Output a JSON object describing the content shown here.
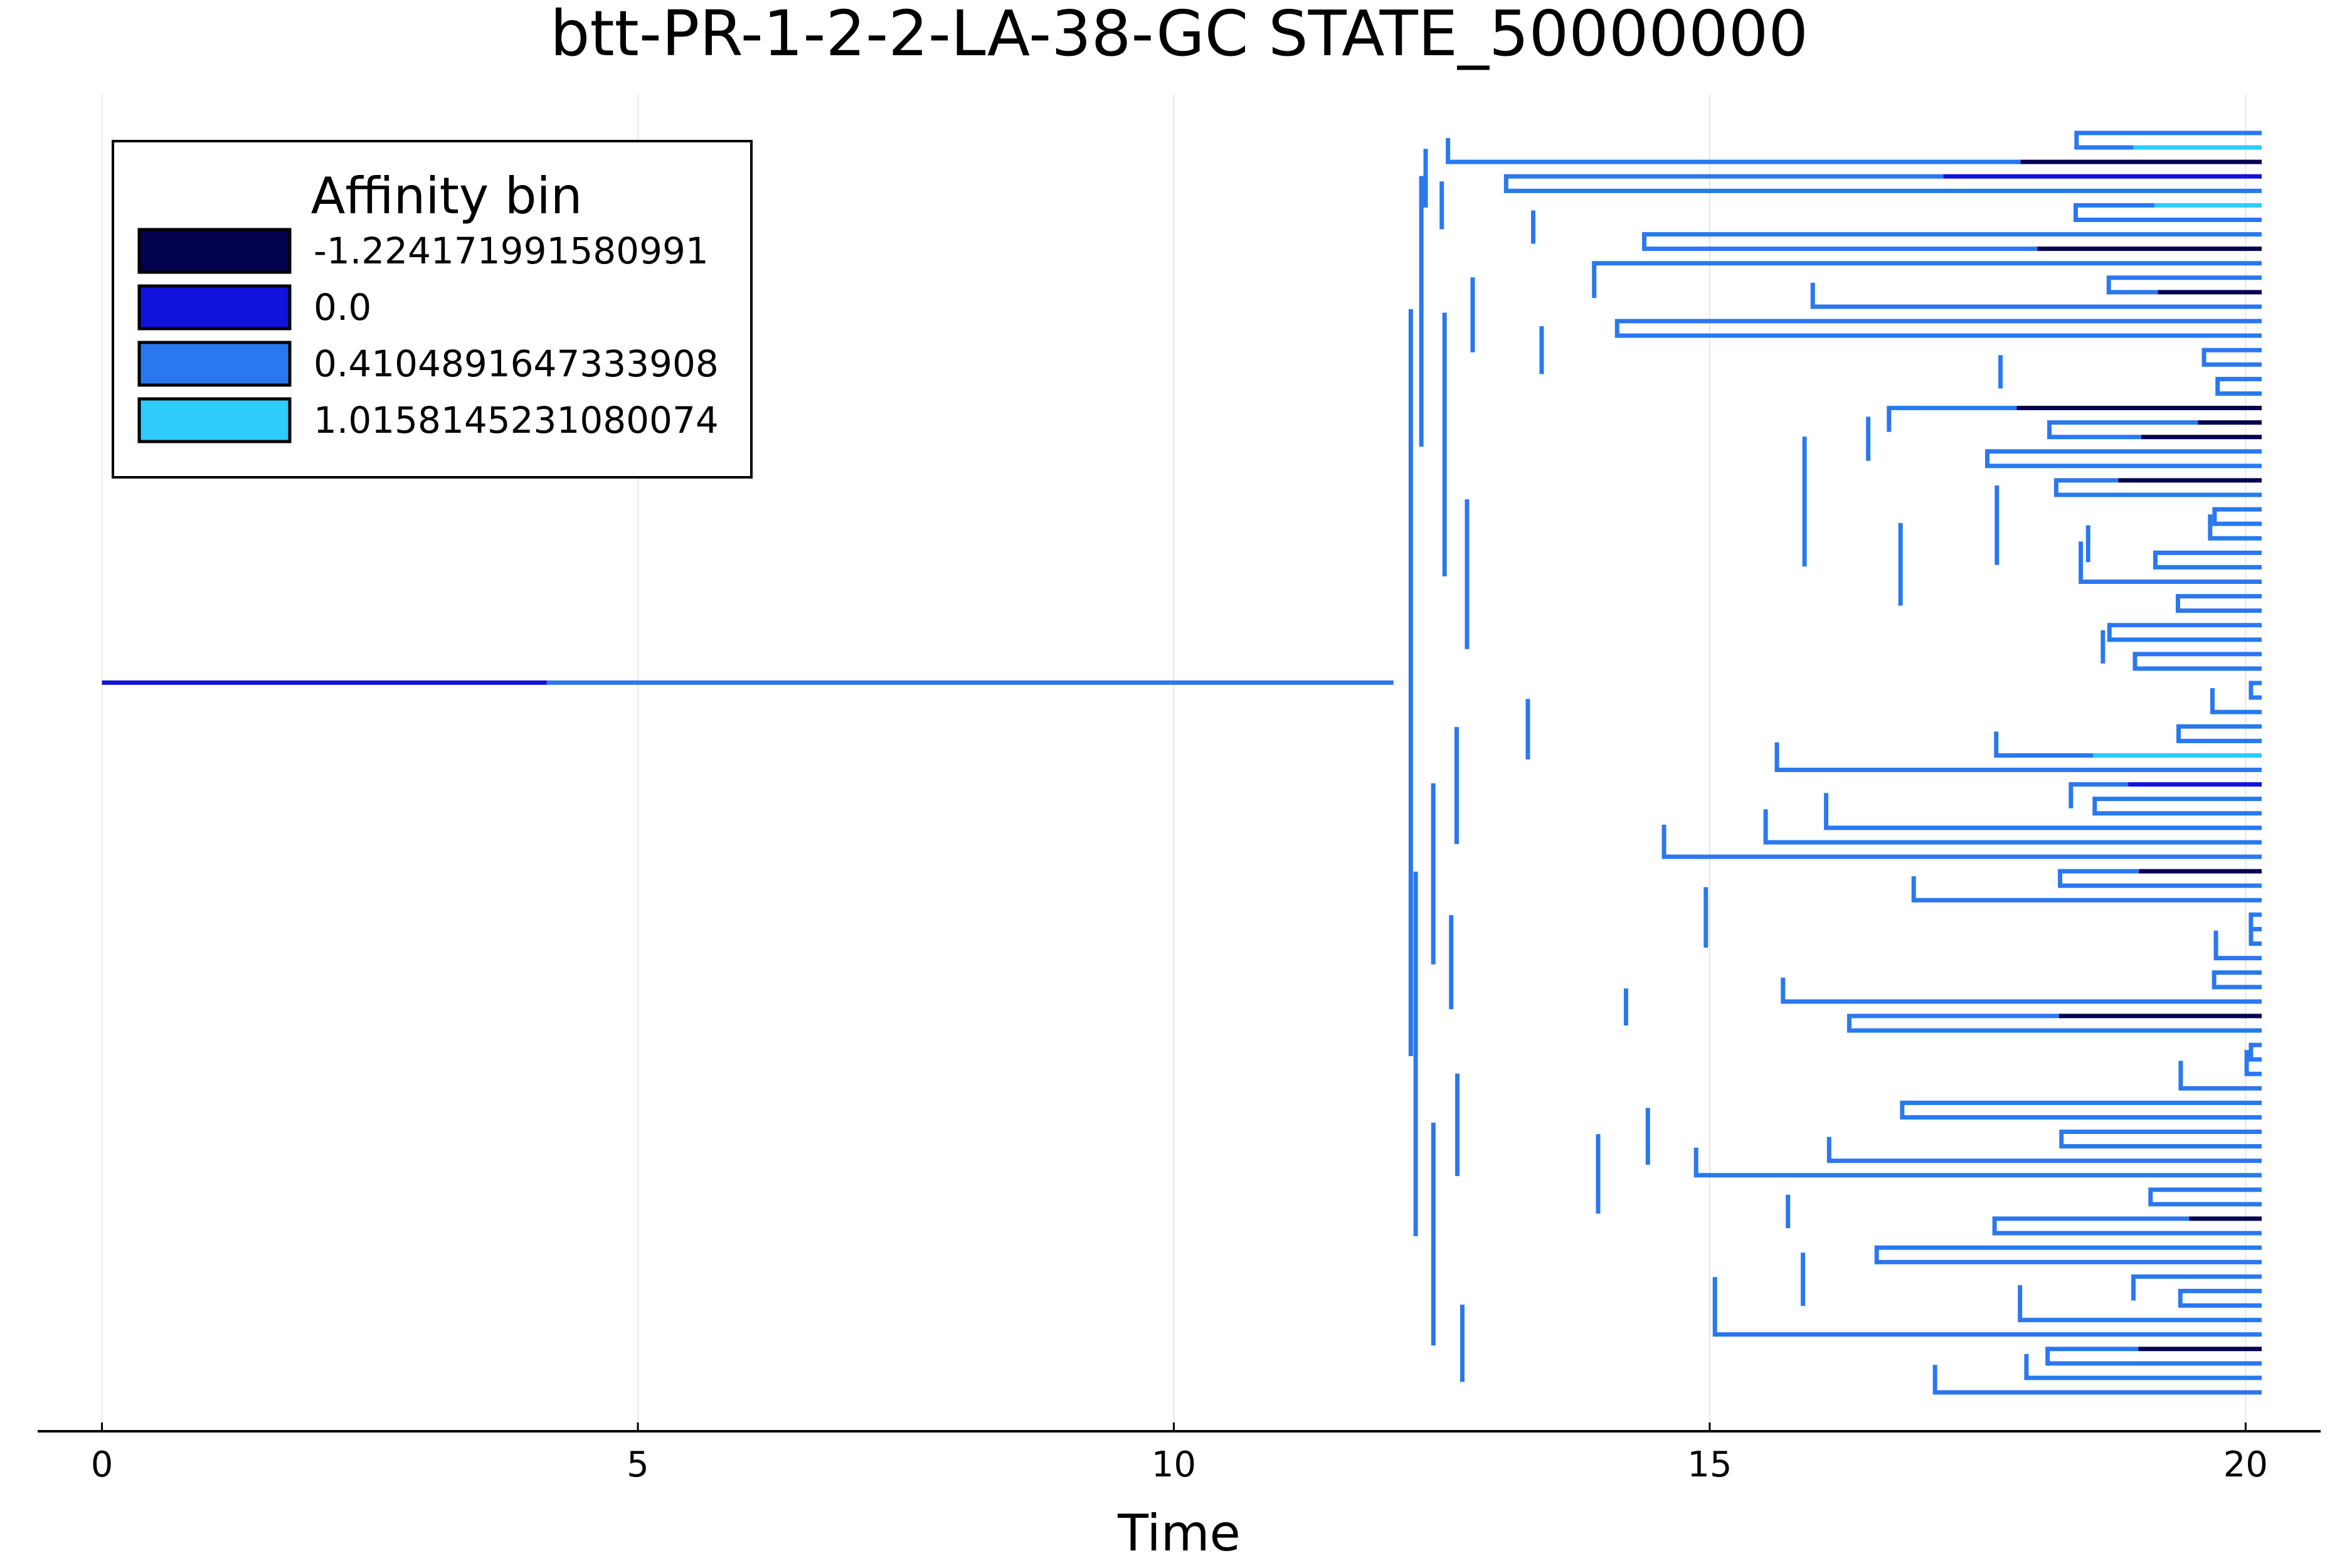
{
  "chart_data": {
    "type": "tree",
    "title": "btt-PR-1-2-2-LA-38-GC STATE_50000000",
    "xlabel": "Time",
    "ylabel": "",
    "xlim": [
      -0.6,
      20.7
    ],
    "x_ticks": [
      0,
      5,
      10,
      15,
      20
    ],
    "x_tick_labels": [
      "0",
      "5",
      "10",
      "15",
      "20"
    ],
    "grid": "vertical",
    "legend": {
      "title": "Affinity bin",
      "position": "top-left",
      "entries": [
        {
          "label": "-1.224171991580991",
          "color": "#03024f"
        },
        {
          "label": "0.0",
          "color": "#1212de"
        },
        {
          "label": "0.4104891647333908",
          "color": "#2a78f0"
        },
        {
          "label": "1.0158145231080074",
          "color": "#2ecbfb"
        }
      ]
    },
    "leaf_count": 88,
    "root": {
      "start": 0,
      "split": 12.05,
      "bin_change_at": 4.15,
      "initial_bin": 1,
      "bin": 2
    },
    "segments": [
      {
        "x0": 12.38,
        "x1": 18.0,
        "y0": 0,
        "y1": 1,
        "y_branch": 0.5
      },
      {
        "x0": 19.3,
        "x1": 20.15,
        "y0": 0,
        "y1": 1
      }
    ]
  }
}
